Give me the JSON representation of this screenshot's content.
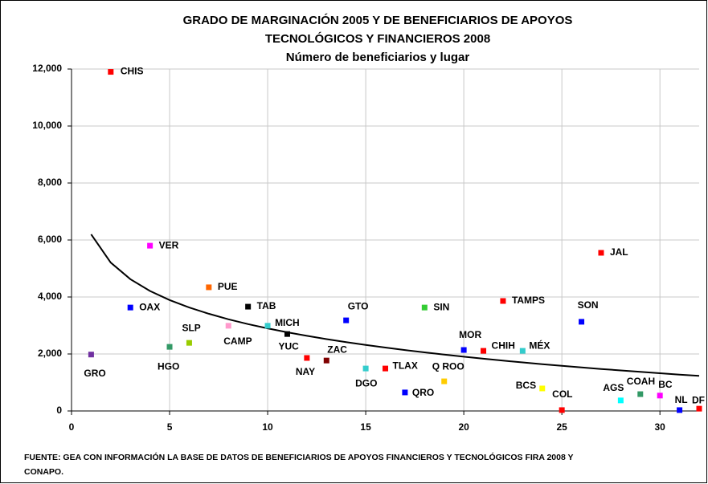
{
  "chart_data": {
    "type": "scatter",
    "title": [
      "GRADO DE MARGINACIÓN 2005 Y DE BENEFICIARIOS DE APOYOS",
      "TECNOLÓGICOS Y FINANCIEROS 2008",
      "Número de beneficiarios y lugar"
    ],
    "labels": [
      "GRO",
      "CHIS",
      "OAX",
      "VER",
      "HGO",
      "SLP",
      "PUE",
      "CAMP",
      "TAB",
      "MICH",
      "YUC",
      "NAY",
      "ZAC",
      "GTO",
      "DGO",
      "TLAX",
      "QRO",
      "SIN",
      "Q ROO",
      "MOR",
      "CHIH",
      "TAMPS",
      "MÉX",
      "BCS",
      "COL",
      "SON",
      "JAL",
      "AGS",
      "COAH",
      "BC",
      "NL",
      "DF"
    ],
    "x": [
      1,
      2,
      3,
      4,
      5,
      6,
      7,
      8,
      9,
      10,
      11,
      12,
      13,
      14,
      15,
      16,
      17,
      18,
      19,
      20,
      21,
      22,
      23,
      24,
      25,
      26,
      27,
      28,
      29,
      30,
      31,
      32
    ],
    "values": [
      1980,
      11900,
      3630,
      5800,
      2250,
      2390,
      4340,
      2990,
      3660,
      2990,
      2700,
      1860,
      1770,
      3180,
      1490,
      1490,
      650,
      3630,
      1040,
      2140,
      2110,
      3860,
      2110,
      790,
      30,
      3130,
      5550,
      370,
      590,
      540,
      30,
      80
    ],
    "colors": [
      "#7030a0",
      "#ff0000",
      "#0000ff",
      "#ff00ff",
      "#339966",
      "#99cc00",
      "#ff6600",
      "#ff99cc",
      "#000000",
      "#33cccc",
      "#000000",
      "#ff0000",
      "#800000",
      "#0000ff",
      "#33cccc",
      "#ff0000",
      "#0000ff",
      "#33cc33",
      "#ffcc00",
      "#0000ff",
      "#ff0000",
      "#ff0000",
      "#33cccc",
      "#ffff00",
      "#ff0000",
      "#0000ff",
      "#ff0000",
      "#00ffff",
      "#339966",
      "#ff00ff",
      "#0000ff",
      "#ff0000"
    ],
    "trendline": {
      "x": [
        1,
        2,
        3,
        4,
        5,
        6,
        7,
        8,
        9,
        10,
        11,
        12,
        13,
        14,
        15,
        16,
        17,
        18,
        19,
        20,
        21,
        22,
        23,
        24,
        25,
        26,
        27,
        28,
        29,
        30,
        31,
        32
      ],
      "values": [
        6200,
        5206,
        4624,
        4212,
        3892,
        3631,
        3410,
        3218,
        3049,
        2898,
        2761,
        2637,
        2522,
        2416,
        2317,
        2224,
        2137,
        2056,
        1978,
        1904,
        1833,
        1767,
        1704,
        1643,
        1584,
        1528,
        1474,
        1422,
        1372,
        1323,
        1276,
        1230
      ],
      "color": "#000000"
    },
    "xlim": [
      0,
      32
    ],
    "ylim": [
      0,
      12000
    ],
    "xticks": [
      0,
      5,
      10,
      15,
      20,
      25,
      30
    ],
    "yticks": [
      0,
      {
        "value": 2000,
        "label": "2,000"
      },
      {
        "value": 4000,
        "label": "4,000"
      },
      {
        "value": 6000,
        "label": "6,000"
      },
      {
        "value": 8000,
        "label": "8,000"
      },
      {
        "value": 10000,
        "label": "10,000"
      },
      {
        "value": 12000,
        "label": "12,000"
      }
    ],
    "grid": true,
    "source": [
      "FUENTE: GEA CON INFORMACIÓN LA BASE DE DATOS DE BENEFICIARIOS DE APOYOS FINANCIEROS Y TECNOLÓGICOS FIRA 2008 Y",
      "CONAPO."
    ]
  }
}
